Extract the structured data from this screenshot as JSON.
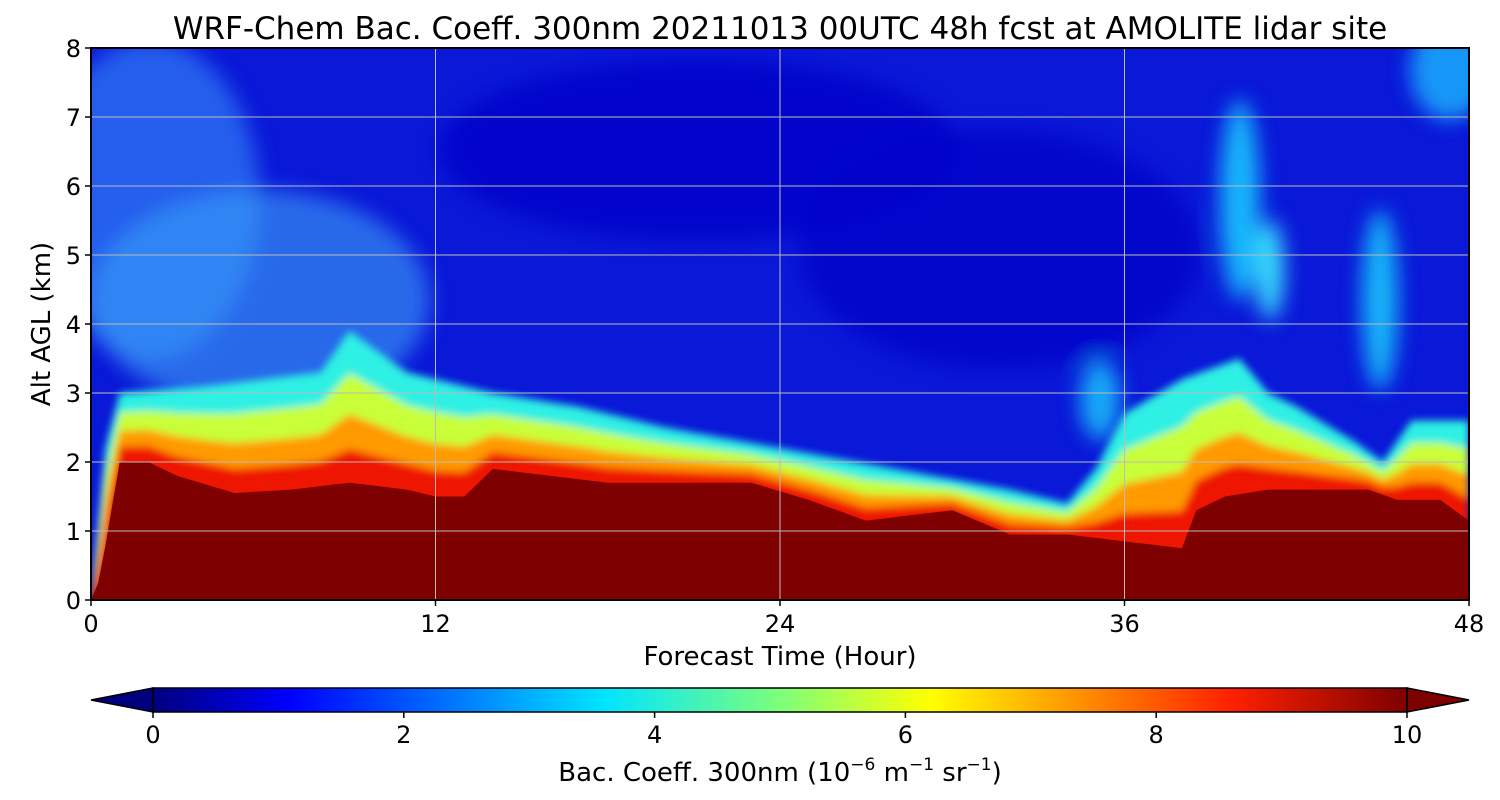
{
  "chart_data": {
    "type": "heatmap",
    "title": "WRF-Chem Bac. Coeff. 300nm  20211013 00UTC 48h fcst at AMOLITE lidar site",
    "xlabel": "Forecast Time (Hour)",
    "ylabel": "Alt AGL (km)",
    "x_ticks": [
      "0",
      "12",
      "24",
      "36",
      "48"
    ],
    "y_ticks": [
      "0",
      "1",
      "2",
      "3",
      "4",
      "5",
      "6",
      "7",
      "8"
    ],
    "xlim": [
      0,
      48
    ],
    "ylim": [
      0,
      8
    ],
    "grid": true,
    "colorbar": {
      "label_main": "Bac. Coeff. 300nm  (10",
      "label_exp1": "−6",
      "label_mid": " m",
      "label_exp2": "−1",
      "label_mid2": " sr",
      "label_exp3": "−1",
      "label_end": ")",
      "ticks": [
        "0",
        "2",
        "4",
        "6",
        "8",
        "10"
      ],
      "range": [
        0,
        10
      ],
      "extend": "both",
      "colormap": "jet"
    },
    "features": {
      "saturated_surface_layer_top_km": [
        [
          0,
          0
        ],
        [
          0.3,
          0.3
        ],
        [
          1,
          2.0
        ],
        [
          2,
          2.0
        ],
        [
          3,
          1.8
        ],
        [
          5,
          1.55
        ],
        [
          7,
          1.6
        ],
        [
          9,
          1.7
        ],
        [
          11,
          1.6
        ],
        [
          12,
          1.5
        ],
        [
          13,
          1.5
        ],
        [
          14,
          1.9
        ],
        [
          16,
          1.8
        ],
        [
          18,
          1.7
        ],
        [
          21,
          1.7
        ],
        [
          23,
          1.7
        ],
        [
          25,
          1.45
        ],
        [
          27,
          1.15
        ],
        [
          30,
          1.3
        ],
        [
          32,
          0.95
        ],
        [
          34,
          0.95
        ],
        [
          36,
          0.85
        ],
        [
          38,
          0.75
        ],
        [
          38.5,
          1.3
        ],
        [
          39.5,
          1.5
        ],
        [
          41,
          1.6
        ],
        [
          43,
          1.6
        ],
        [
          44.5,
          1.6
        ],
        [
          45.5,
          1.45
        ],
        [
          47,
          1.45
        ],
        [
          48,
          1.15
        ]
      ],
      "aerosol_layer_top_km": [
        [
          0,
          0
        ],
        [
          0.5,
          2.2
        ],
        [
          1,
          3.0
        ],
        [
          4,
          3.1
        ],
        [
          8,
          3.3
        ],
        [
          9,
          3.9
        ],
        [
          11,
          3.3
        ],
        [
          14,
          3.0
        ],
        [
          17,
          2.8
        ],
        [
          20,
          2.5
        ],
        [
          24,
          2.2
        ],
        [
          28,
          1.9
        ],
        [
          32,
          1.6
        ],
        [
          34,
          1.4
        ],
        [
          35,
          1.9
        ],
        [
          36,
          2.7
        ],
        [
          38,
          3.2
        ],
        [
          40,
          3.5
        ],
        [
          41,
          3.0
        ],
        [
          42,
          2.8
        ],
        [
          44,
          2.3
        ],
        [
          45,
          2.0
        ],
        [
          46,
          2.6
        ],
        [
          48,
          2.6
        ]
      ]
    }
  }
}
